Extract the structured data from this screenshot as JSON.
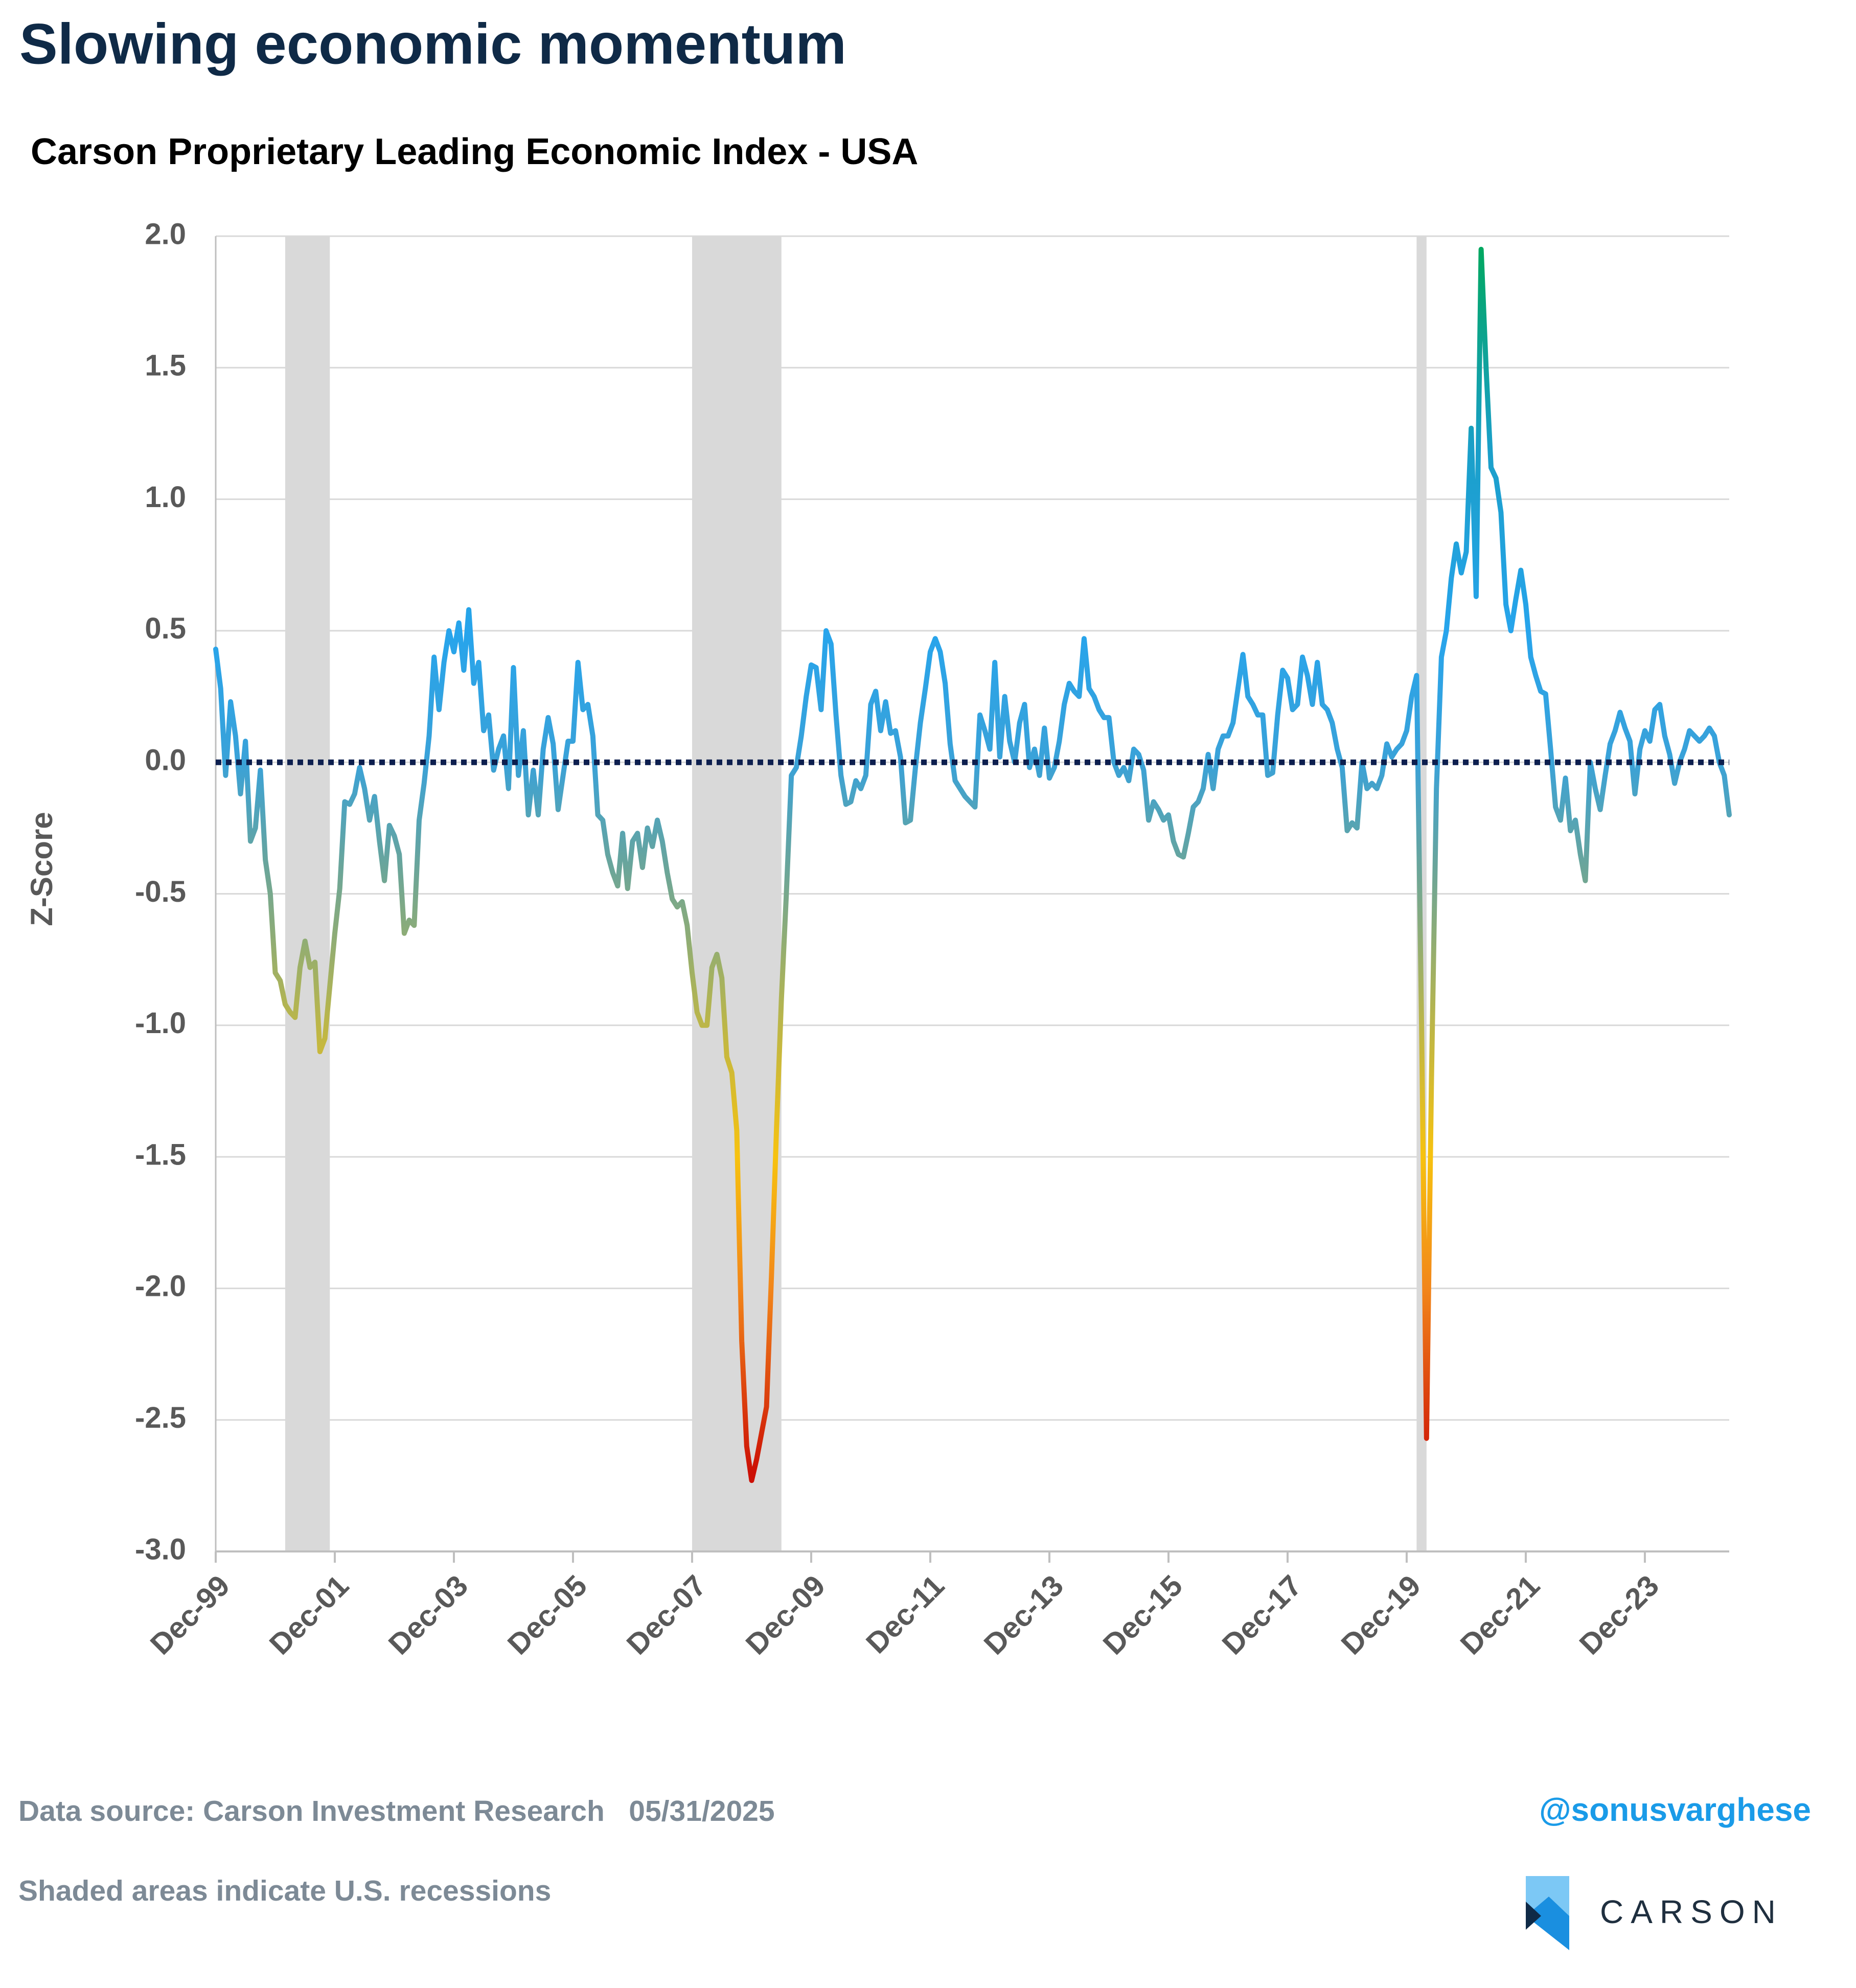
{
  "chart_data": {
    "type": "line",
    "title": "Slowing economic momentum",
    "subtitle": "Carson Proprietary Leading Economic Index - USA",
    "y_label": "Z-Score",
    "source": "Data source: Carson Investment Research   05/31/2025",
    "note": "Shaded areas indicate U.S. recessions",
    "handle": "@sonusvarghese",
    "brand": "CARSON",
    "ylim": [
      -3,
      2
    ],
    "yticks": [
      {
        "value": 2,
        "label": "2.0"
      },
      {
        "value": 1.5,
        "label": "1.5"
      },
      {
        "value": 1,
        "label": "1.0"
      },
      {
        "value": 0.5,
        "label": "0.5"
      },
      {
        "value": 0,
        "label": "0.0"
      },
      {
        "value": -0.5,
        "label": "-0.5"
      },
      {
        "value": -1,
        "label": "-1.0"
      },
      {
        "value": -1.5,
        "label": "-1.5"
      },
      {
        "value": -2,
        "label": "-2.0"
      },
      {
        "value": -2.5,
        "label": "-2.5"
      },
      {
        "value": -3,
        "label": "-3.0"
      }
    ],
    "grid": true,
    "reference_line": 0,
    "reference_color": "#0d1f4f",
    "recession_color": "#d9d9d9",
    "recessions": [
      [
        14,
        23
      ],
      [
        96,
        114
      ],
      [
        242,
        244
      ]
    ],
    "color_scale": [
      {
        "value": 2,
        "color": "#00a85a"
      },
      {
        "value": 1.2,
        "color": "#1a9fc8"
      },
      {
        "value": 0.5,
        "color": "#27a4ec"
      },
      {
        "value": 0,
        "color": "#3aa2d8"
      },
      {
        "value": -0.4,
        "color": "#6aa59a"
      },
      {
        "value": -1,
        "color": "#bcb648"
      },
      {
        "value": -1.5,
        "color": "#f7c20f"
      },
      {
        "value": -2,
        "color": "#f2861a"
      },
      {
        "value": -2.7,
        "color": "#cc1005"
      }
    ],
    "categories": [
      "Dec-99",
      null,
      null,
      null,
      null,
      null,
      null,
      null,
      null,
      null,
      null,
      null,
      null,
      null,
      null,
      null,
      null,
      null,
      null,
      null,
      null,
      null,
      null,
      null,
      "Dec-01",
      null,
      null,
      null,
      null,
      null,
      null,
      null,
      null,
      null,
      null,
      null,
      null,
      null,
      null,
      null,
      null,
      null,
      null,
      null,
      null,
      null,
      null,
      null,
      "Dec-03",
      null,
      null,
      null,
      null,
      null,
      null,
      null,
      null,
      null,
      null,
      null,
      null,
      null,
      null,
      null,
      null,
      null,
      null,
      null,
      null,
      null,
      null,
      null,
      "Dec-05",
      null,
      null,
      null,
      null,
      null,
      null,
      null,
      null,
      null,
      null,
      null,
      null,
      null,
      null,
      null,
      null,
      null,
      null,
      null,
      null,
      null,
      null,
      null,
      "Dec-07",
      null,
      null,
      null,
      null,
      null,
      null,
      null,
      null,
      null,
      null,
      null,
      null,
      null,
      null,
      null,
      null,
      null,
      null,
      null,
      null,
      null,
      null,
      null,
      "Dec-09",
      null,
      null,
      null,
      null,
      null,
      null,
      null,
      null,
      null,
      null,
      null,
      null,
      null,
      null,
      null,
      null,
      null,
      null,
      null,
      null,
      null,
      null,
      null,
      "Dec-11",
      null,
      null,
      null,
      null,
      null,
      null,
      null,
      null,
      null,
      null,
      null,
      null,
      null,
      null,
      null,
      null,
      null,
      null,
      null,
      null,
      null,
      null,
      null,
      "Dec-13",
      null,
      null,
      null,
      null,
      null,
      null,
      null,
      null,
      null,
      null,
      null,
      null,
      null,
      null,
      null,
      null,
      null,
      null,
      null,
      null,
      null,
      null,
      null,
      "Dec-15",
      null,
      null,
      null,
      null,
      null,
      null,
      null,
      null,
      null,
      null,
      null,
      null,
      null,
      null,
      null,
      null,
      null,
      null,
      null,
      null,
      null,
      null,
      null,
      "Dec-17",
      null,
      null,
      null,
      null,
      null,
      null,
      null,
      null,
      null,
      null,
      null,
      null,
      null,
      null,
      null,
      null,
      null,
      null,
      null,
      null,
      null,
      null,
      null,
      "Dec-19",
      null,
      null,
      null,
      null,
      null,
      null,
      null,
      null,
      null,
      null,
      null,
      null,
      null,
      null,
      null,
      null,
      null,
      null,
      null,
      null,
      null,
      null,
      null,
      "Dec-21",
      null,
      null,
      null,
      null,
      null,
      null,
      null,
      null,
      null,
      null,
      null,
      null,
      null,
      null,
      null,
      null,
      null,
      null,
      null,
      null,
      null,
      null,
      null,
      "Dec-23",
      null,
      null,
      null,
      null,
      null,
      null,
      null,
      null,
      null,
      null,
      null,
      null,
      null,
      null,
      null,
      null,
      null
    ],
    "values": [
      0.43,
      0.28,
      -0.05,
      0.23,
      0.1,
      -0.12,
      0.08,
      -0.3,
      -0.25,
      -0.03,
      -0.37,
      -0.5,
      -0.8,
      -0.83,
      -0.92,
      -0.95,
      -0.97,
      -0.78,
      -0.68,
      -0.78,
      -0.76,
      -1.1,
      -1.05,
      -0.85,
      -0.65,
      -0.48,
      -0.15,
      -0.16,
      -0.12,
      -0.02,
      -0.1,
      -0.22,
      -0.13,
      -0.3,
      -0.45,
      -0.24,
      -0.28,
      -0.35,
      -0.65,
      -0.6,
      -0.62,
      -0.22,
      -0.08,
      0.1,
      0.4,
      0.2,
      0.38,
      0.5,
      0.42,
      0.53,
      0.35,
      0.58,
      0.3,
      0.38,
      0.12,
      0.18,
      -0.03,
      0.05,
      0.1,
      -0.1,
      0.36,
      -0.05,
      0.12,
      -0.2,
      -0.03,
      -0.2,
      0.05,
      0.17,
      0.07,
      -0.18,
      -0.05,
      0.08,
      0.08,
      0.38,
      0.2,
      0.22,
      0.1,
      -0.2,
      -0.22,
      -0.35,
      -0.42,
      -0.47,
      -0.27,
      -0.48,
      -0.3,
      -0.27,
      -0.4,
      -0.25,
      -0.32,
      -0.22,
      -0.3,
      -0.42,
      -0.52,
      -0.55,
      -0.53,
      -0.62,
      -0.8,
      -0.95,
      -1.0,
      -1.0,
      -0.78,
      -0.73,
      -0.82,
      -1.12,
      -1.18,
      -1.4,
      -2.2,
      -2.6,
      -2.73,
      -2.65,
      -2.55,
      -2.45,
      -1.95,
      -1.4,
      -0.9,
      -0.5,
      -0.05,
      -0.02,
      0.1,
      0.25,
      0.37,
      0.36,
      0.2,
      0.5,
      0.45,
      0.18,
      -0.05,
      -0.16,
      -0.15,
      -0.07,
      -0.1,
      -0.05,
      0.22,
      0.27,
      0.12,
      0.23,
      0.11,
      0.12,
      0.02,
      -0.23,
      -0.22,
      -0.02,
      0.15,
      0.28,
      0.42,
      0.47,
      0.42,
      0.3,
      0.07,
      -0.07,
      -0.1,
      -0.13,
      -0.15,
      -0.17,
      0.18,
      0.12,
      0.05,
      0.38,
      0.02,
      0.25,
      0.08,
      0.0,
      0.15,
      0.22,
      -0.02,
      0.05,
      -0.05,
      0.13,
      -0.06,
      -0.02,
      0.08,
      0.22,
      0.3,
      0.27,
      0.25,
      0.47,
      0.28,
      0.25,
      0.2,
      0.17,
      0.17,
      0.0,
      -0.05,
      -0.02,
      -0.07,
      0.05,
      0.03,
      -0.03,
      -0.22,
      -0.15,
      -0.18,
      -0.22,
      -0.2,
      -0.3,
      -0.35,
      -0.36,
      -0.27,
      -0.17,
      -0.15,
      -0.1,
      0.03,
      -0.1,
      0.05,
      0.1,
      0.1,
      0.15,
      0.28,
      0.41,
      0.25,
      0.22,
      0.18,
      0.18,
      -0.05,
      -0.04,
      0.18,
      0.35,
      0.32,
      0.2,
      0.22,
      0.4,
      0.33,
      0.22,
      0.38,
      0.22,
      0.2,
      0.15,
      0.05,
      -0.02,
      -0.26,
      -0.23,
      -0.25,
      0.0,
      -0.1,
      -0.08,
      -0.1,
      -0.05,
      0.07,
      0.02,
      0.05,
      0.07,
      0.12,
      0.25,
      0.33,
      -1.0,
      -2.57,
      -1.2,
      -0.1,
      0.4,
      0.5,
      0.7,
      0.83,
      0.72,
      0.8,
      1.27,
      0.63,
      1.95,
      1.5,
      1.12,
      1.08,
      0.95,
      0.6,
      0.5,
      0.62,
      0.73,
      0.6,
      0.4,
      0.33,
      0.27,
      0.26,
      0.05,
      -0.17,
      -0.22,
      -0.06,
      -0.26,
      -0.22,
      -0.35,
      -0.45,
      0.0,
      -0.1,
      -0.18,
      -0.05,
      0.07,
      0.12,
      0.19,
      0.13,
      0.08,
      -0.12,
      0.05,
      0.12,
      0.08,
      0.2,
      0.22,
      0.1,
      0.03,
      -0.08,
      0.0,
      0.05,
      0.12,
      0.1,
      0.08,
      0.1,
      0.13,
      0.1,
      0.0,
      -0.05,
      -0.2
    ]
  }
}
